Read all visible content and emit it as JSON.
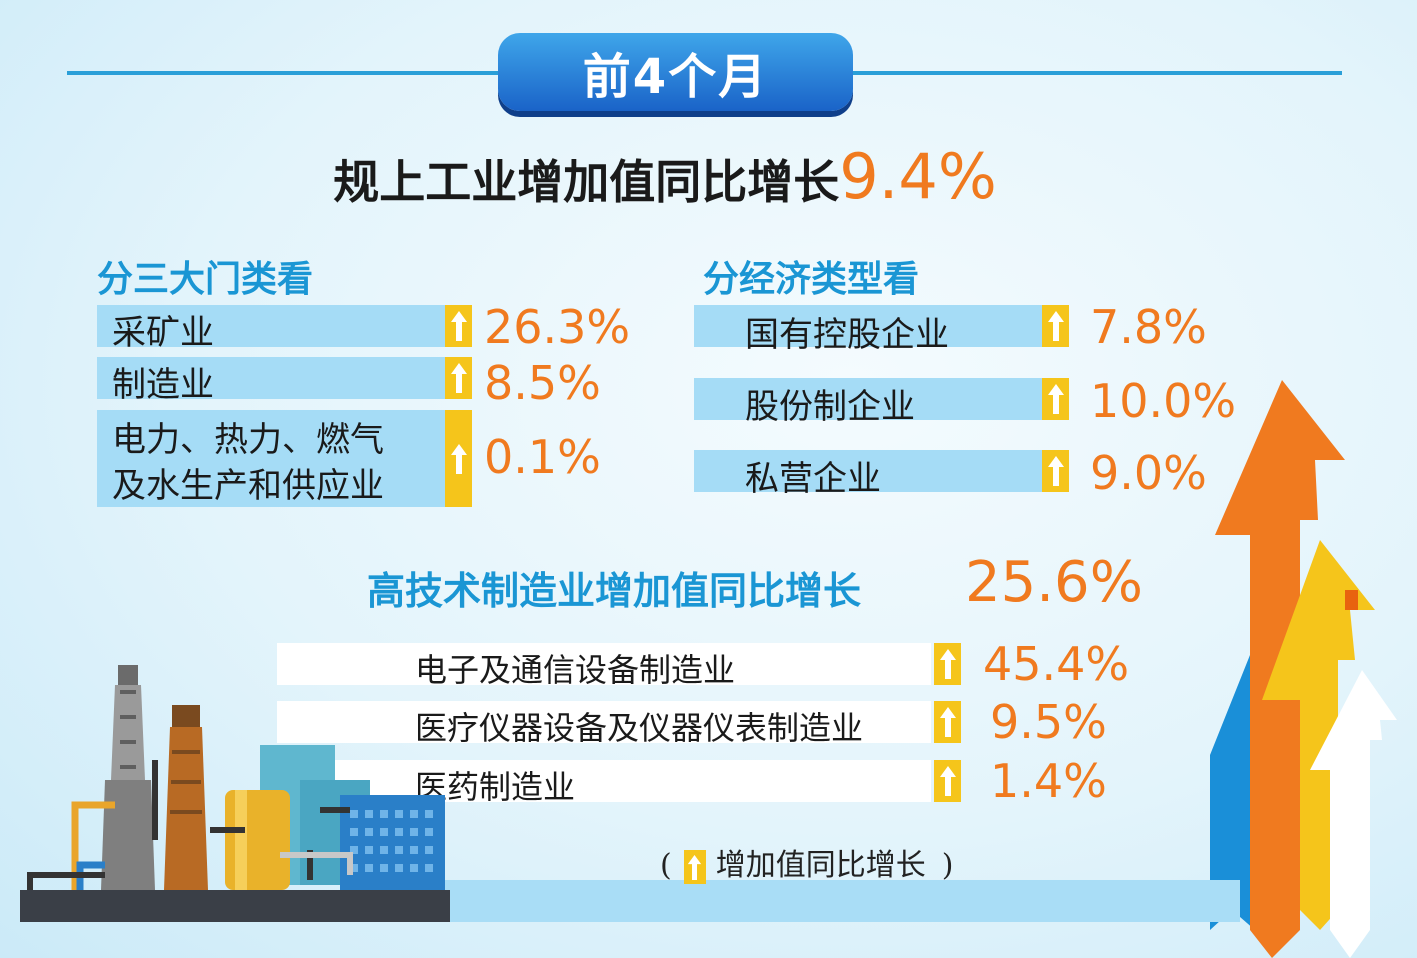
{
  "badge": "前4个月",
  "headline": {
    "text": "规上工业增加值同比增长",
    "value": "9.4%"
  },
  "left_section": {
    "title": "分三大门类看",
    "items": [
      {
        "label": "采矿业",
        "value": "26.3%"
      },
      {
        "label": "制造业",
        "value": "8.5%"
      },
      {
        "label_line1": "电力、热力、燃气",
        "label_line2": "及水生产和供应业",
        "value": "0.1%"
      }
    ]
  },
  "right_section": {
    "title": "分经济类型看",
    "items": [
      {
        "label": "国有控股企业",
        "value": "7.8%"
      },
      {
        "label": "股份制企业",
        "value": "10.0%"
      },
      {
        "label": "私营企业",
        "value": "9.0%"
      }
    ]
  },
  "hitech": {
    "title": "高技术制造业增加值同比增长",
    "value": "25.6%",
    "items": [
      {
        "label": "电子及通信设备制造业",
        "value": "45.4%"
      },
      {
        "label": "医疗仪器设备及仪器仪表制造业",
        "value": "9.5%"
      },
      {
        "label": "医药制造业",
        "value": "1.4%"
      }
    ]
  },
  "legend": {
    "open": "(",
    "text": "增加值同比增长",
    "close": ")"
  },
  "colors": {
    "accent": "#f07a1f",
    "title_blue": "#1a96d4",
    "row_blue": "#a5dcf6",
    "arrow_yellow": "#f5c51b",
    "line_blue": "#2a9fd8"
  },
  "icons": {
    "up_arrow": "up-arrow-icon",
    "factory": "factory-illustration",
    "big_arrows": "rising-arrows-illustration"
  }
}
